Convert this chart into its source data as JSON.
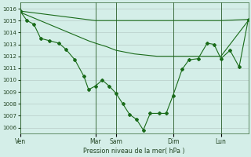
{
  "background_color": "#d4eee8",
  "grid_color": "#c8ddd8",
  "line_color": "#1a6b1a",
  "xlabel": "Pression niveau de la mer( hPa )",
  "ylim": [
    1005.5,
    1016.5
  ],
  "yticks": [
    1006,
    1007,
    1008,
    1009,
    1010,
    1011,
    1012,
    1013,
    1014,
    1015,
    1016
  ],
  "day_labels": [
    "Ven",
    "Mar",
    "Sam",
    "Dim",
    "Lun"
  ],
  "day_positions": [
    0.0,
    0.33,
    0.42,
    0.67,
    0.88
  ],
  "xlim": [
    0,
    1.0
  ],
  "line_flat_x": [
    0.0,
    0.33,
    0.42,
    0.67,
    0.88,
    1.0
  ],
  "line_flat_y": [
    1015.8,
    1015.0,
    1015.0,
    1015.0,
    1015.0,
    1015.1
  ],
  "line_mid_x": [
    0.0,
    0.05,
    0.1,
    0.15,
    0.2,
    0.25,
    0.3,
    0.33,
    0.38,
    0.42,
    0.5,
    0.55,
    0.6,
    0.67,
    0.72,
    0.78,
    0.83,
    0.88,
    1.0
  ],
  "line_mid_y": [
    1015.7,
    1015.3,
    1014.9,
    1014.5,
    1014.1,
    1013.7,
    1013.3,
    1013.1,
    1012.8,
    1012.5,
    1012.2,
    1012.1,
    1012.0,
    1012.0,
    1012.0,
    1012.0,
    1012.0,
    1012.0,
    1015.0
  ],
  "line_main_x": [
    0.0,
    0.03,
    0.06,
    0.09,
    0.13,
    0.17,
    0.2,
    0.24,
    0.28,
    0.3,
    0.33,
    0.36,
    0.39,
    0.42,
    0.45,
    0.48,
    0.51,
    0.54,
    0.57,
    0.61,
    0.64,
    0.67,
    0.71,
    0.74,
    0.78,
    0.82,
    0.85,
    0.88,
    0.92,
    0.96,
    1.0
  ],
  "line_main_y": [
    1015.8,
    1015.0,
    1014.7,
    1013.5,
    1013.3,
    1013.1,
    1012.6,
    1011.7,
    1010.3,
    1009.2,
    1009.5,
    1010.0,
    1009.5,
    1008.9,
    1008.0,
    1007.1,
    1006.7,
    1005.8,
    1007.2,
    1007.2,
    1007.2,
    1008.7,
    1010.9,
    1011.7,
    1011.8,
    1013.1,
    1013.0,
    1011.8,
    1012.5,
    1011.1,
    1015.1
  ]
}
